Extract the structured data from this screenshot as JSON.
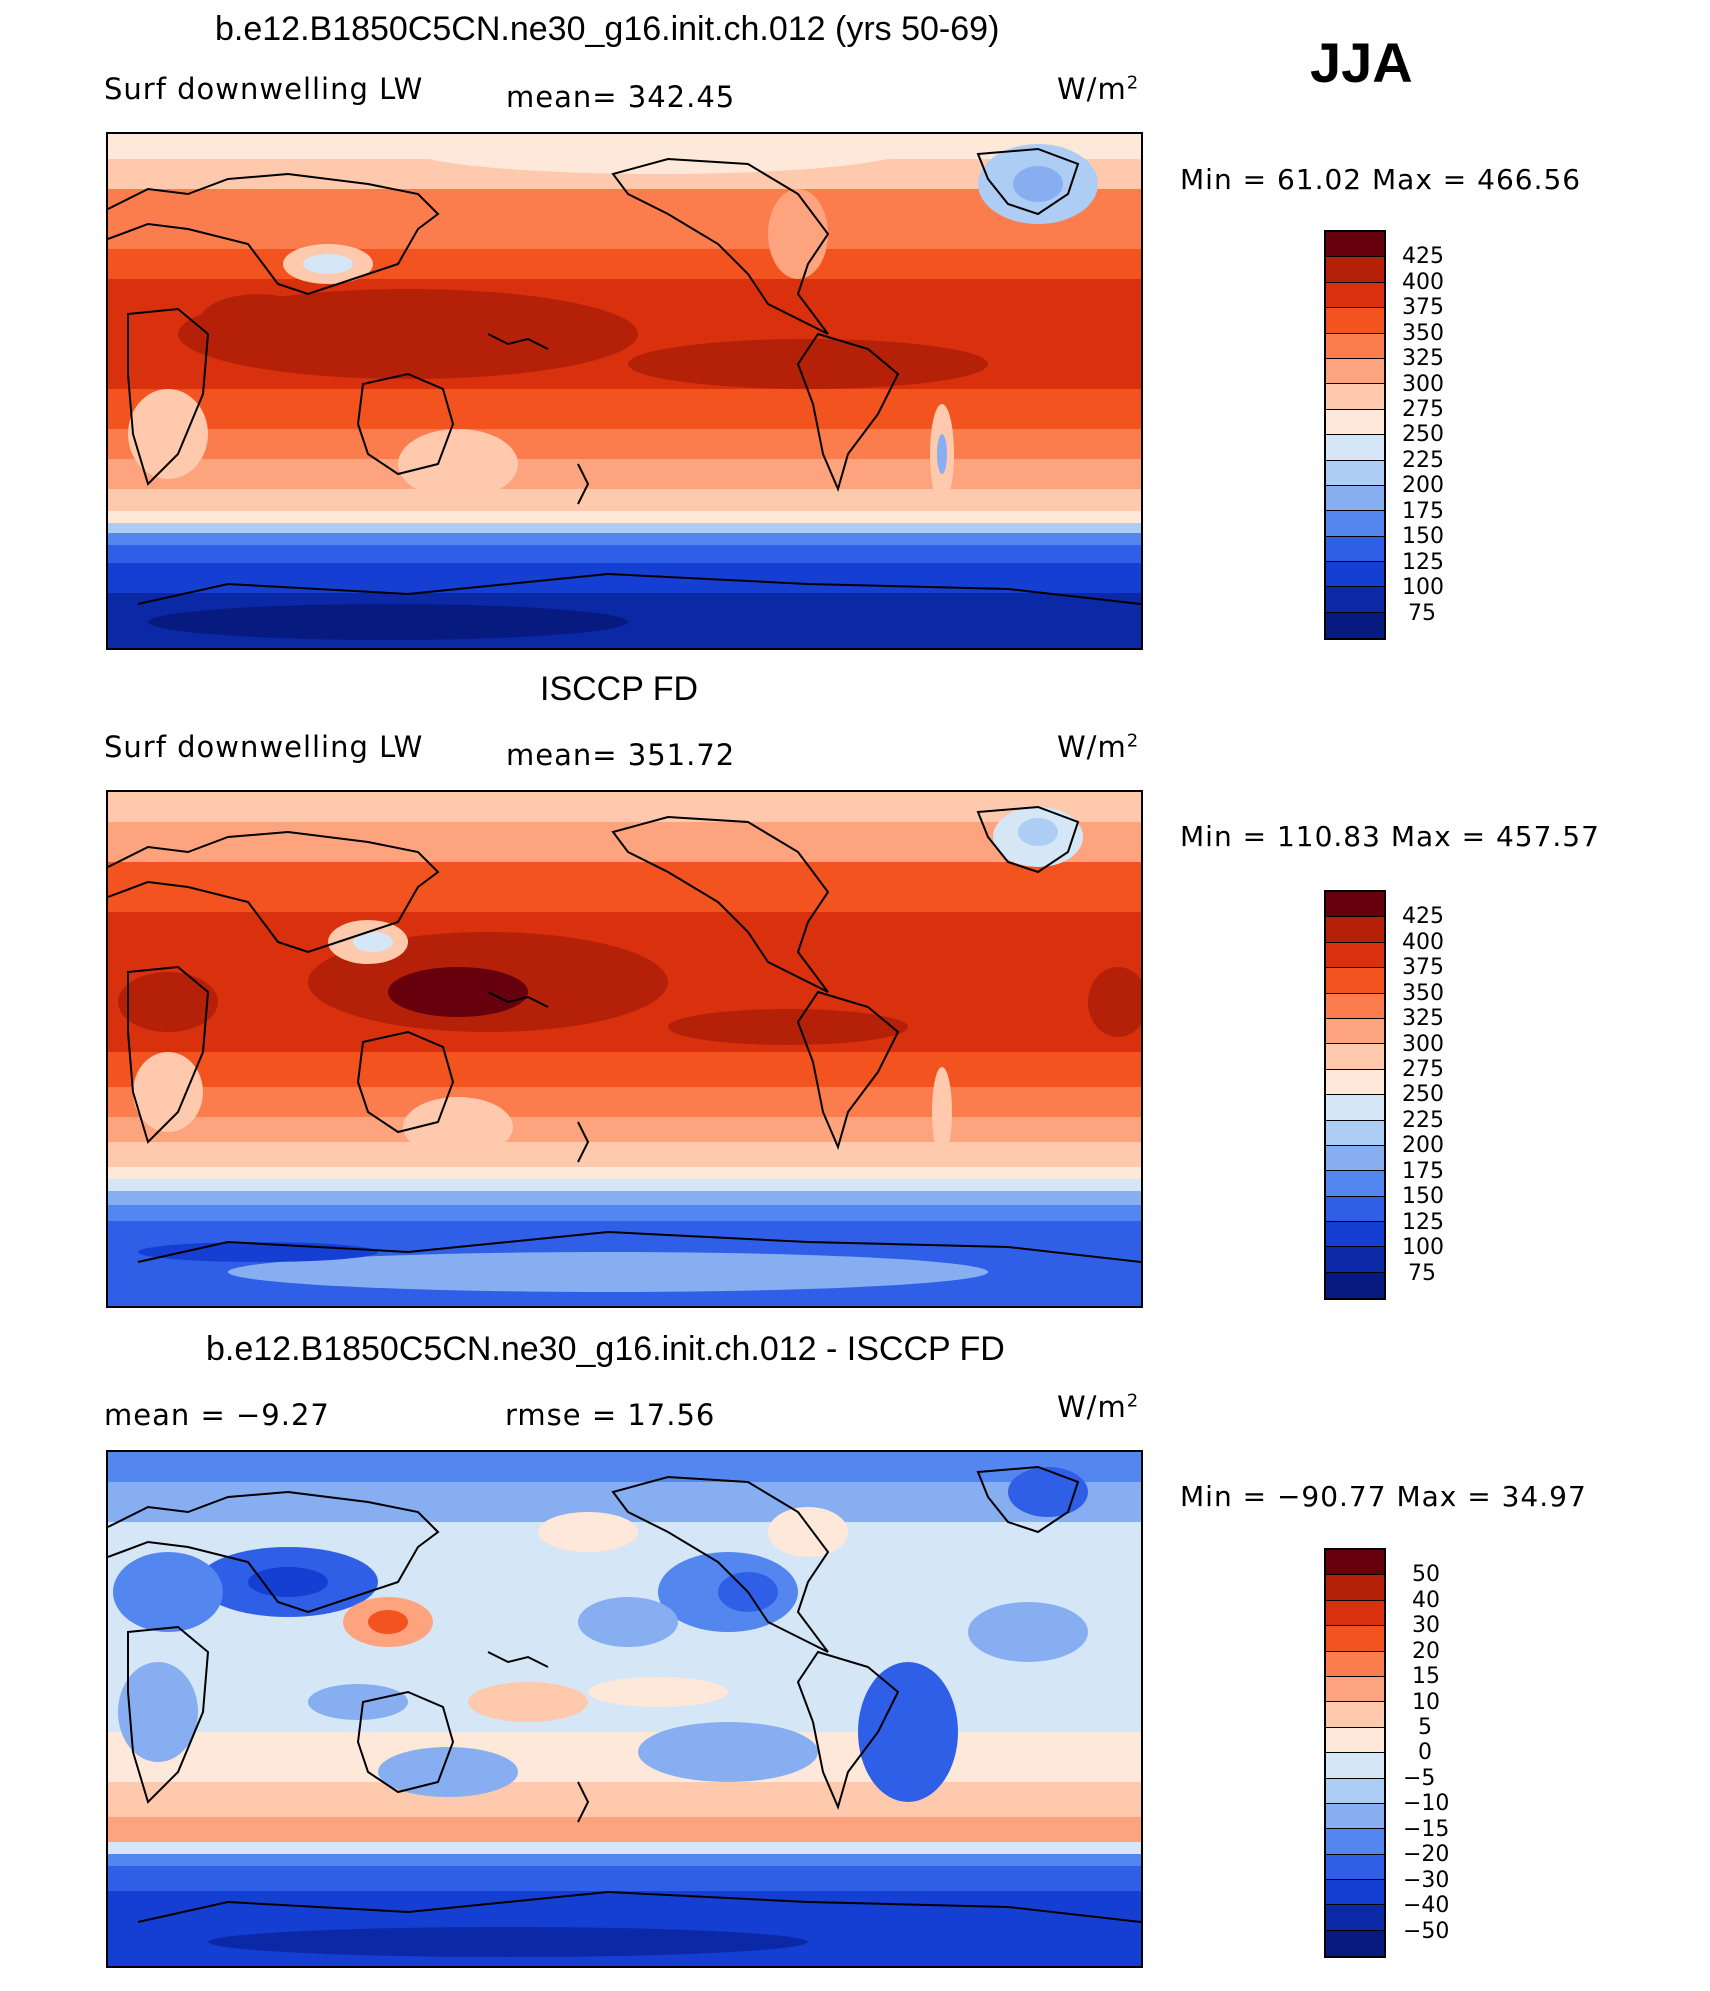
{
  "season": "JJA",
  "panels": [
    {
      "title": "b.e12.B1850C5CN.ne30_g16.init.ch.012 (yrs 50-69)",
      "left_label": "Surf downwelling LW",
      "center_label": "mean= 342.45",
      "units": "W/m",
      "units_sup": "2",
      "minmax": "Min =   61.02 Max = 466.56",
      "colorbar": {
        "colors": [
          "#67000d",
          "#b52009",
          "#d9300d",
          "#f2531f",
          "#fb7d4e",
          "#fda47f",
          "#fec9ad",
          "#fee8d9",
          "#d5e6f7",
          "#aecdf4",
          "#86aef0",
          "#5386ee",
          "#2f5fe7",
          "#153fd3",
          "#0b29a6",
          "#061a80"
        ],
        "labels": [
          "425",
          "400",
          "375",
          "350",
          "325",
          "300",
          "275",
          "250",
          "225",
          "200",
          "175",
          "150",
          "125",
          "100",
          "75"
        ]
      }
    },
    {
      "title": "ISCCP FD",
      "left_label": "Surf downwelling LW",
      "center_label": "mean= 351.72",
      "units": "W/m",
      "units_sup": "2",
      "minmax": "Min = 110.83 Max = 457.57",
      "colorbar": {
        "colors": [
          "#67000d",
          "#b52009",
          "#d9300d",
          "#f2531f",
          "#fb7d4e",
          "#fda47f",
          "#fec9ad",
          "#fee8d9",
          "#d5e6f7",
          "#aecdf4",
          "#86aef0",
          "#5386ee",
          "#2f5fe7",
          "#153fd3",
          "#0b29a6",
          "#061a80"
        ],
        "labels": [
          "425",
          "400",
          "375",
          "350",
          "325",
          "300",
          "275",
          "250",
          "225",
          "200",
          "175",
          "150",
          "125",
          "100",
          "75"
        ]
      }
    },
    {
      "title": "b.e12.B1850C5CN.ne30_g16.init.ch.012 - ISCCP FD",
      "left_label": "mean =   −9.27",
      "center_label": "rmse =   17.56",
      "units": "W/m",
      "units_sup": "2",
      "minmax": "Min = −90.77 Max =   34.97",
      "colorbar": {
        "colors": [
          "#67000d",
          "#b52009",
          "#d9300d",
          "#f2531f",
          "#fb7d4e",
          "#fda47f",
          "#fec9ad",
          "#fee8d9",
          "#d5e6f7",
          "#aecdf4",
          "#86aef0",
          "#5386ee",
          "#2f5fe7",
          "#153fd3",
          "#0b29a6",
          "#061a80"
        ],
        "labels": [
          "50",
          "40",
          "30",
          "20",
          "15",
          "10",
          "5",
          "0",
          "−5",
          "−10",
          "−15",
          "−20",
          "−30",
          "−40",
          "−50"
        ]
      }
    }
  ]
}
